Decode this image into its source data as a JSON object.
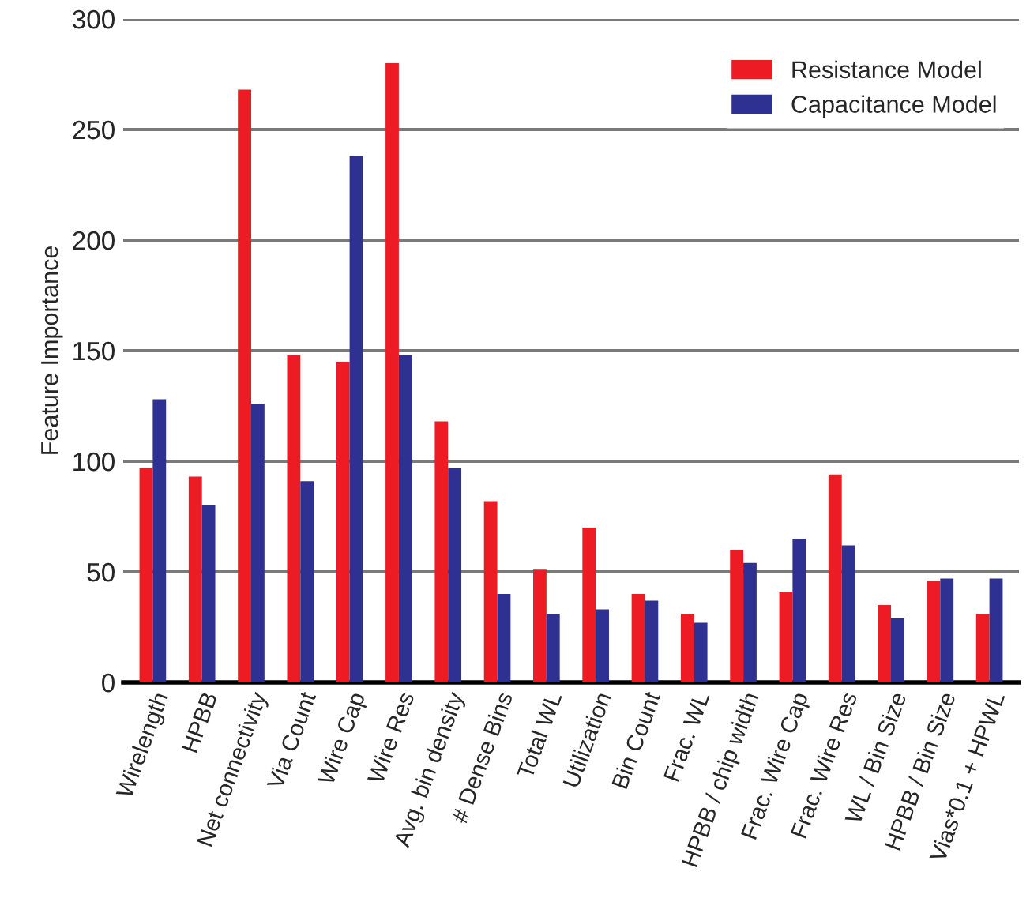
{
  "chart_data": {
    "type": "bar",
    "ylabel": "Feature Importance",
    "categories": [
      "Wirelength",
      "HPBB",
      "Net connectivity",
      "Via Count",
      "Wire Cap",
      "Wire Res",
      "Avg. bin density",
      "# Dense Bins",
      "Total WL",
      "Utilization",
      "Bin Count",
      "Frac. WL",
      "HPBB / chip width",
      "Frac. Wire Cap",
      "Frac. Wire Res",
      "WL / Bin Size",
      "HPBB / Bin Size",
      "Vias*0.1 + HPWL"
    ],
    "series": [
      {
        "name": "Resistance Model",
        "color": "#ed1c24",
        "values": [
          97,
          93,
          268,
          148,
          145,
          280,
          118,
          82,
          51,
          70,
          40,
          31,
          60,
          41,
          94,
          35,
          46,
          31
        ]
      },
      {
        "name": "Capacitance Model",
        "color": "#2e3192",
        "values": [
          128,
          80,
          126,
          91,
          238,
          148,
          97,
          40,
          31,
          33,
          37,
          27,
          54,
          65,
          62,
          29,
          47,
          47
        ]
      }
    ],
    "ylim": [
      0,
      300
    ],
    "yticks": [
      0,
      50,
      100,
      150,
      200,
      250,
      300
    ],
    "grid": "y",
    "legend": "top right"
  }
}
